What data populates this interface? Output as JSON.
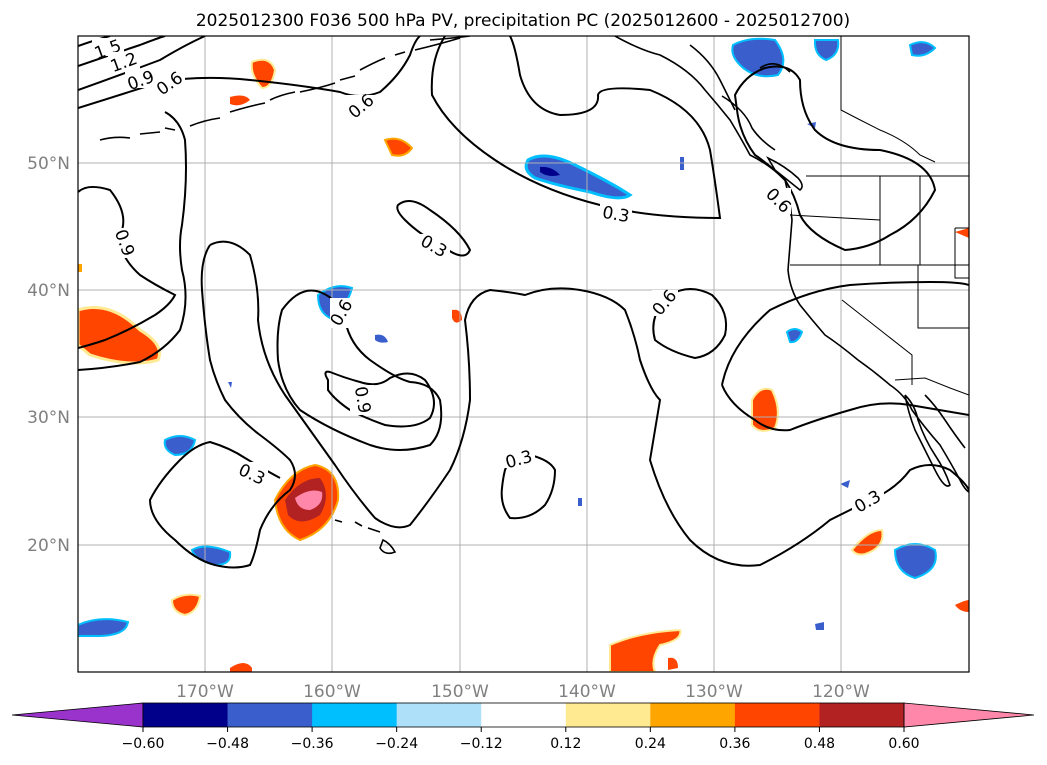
{
  "title": "2025012300 F036 500 hPa PV, precipitation PC (2025012600 - 2025012700)",
  "lat_labels": [
    "50°N",
    "40°N",
    "30°N",
    "20°N"
  ],
  "lon_labels": [
    "170°W",
    "160°W",
    "150°W",
    "140°W",
    "130°W",
    "120°W"
  ],
  "contour_labels": [
    "1.5",
    "1.2",
    "0.9",
    "0.6",
    "0.6",
    "0.9",
    "0.6",
    "0.9",
    "0.6",
    "0.3",
    "0.3",
    "0.6",
    "0.3",
    "0.3",
    "0.3"
  ],
  "colorbar": {
    "colors": [
      "#9933cc",
      "#00008b",
      "#3a5fcd",
      "#00bfff",
      "#afe0fa",
      "#ffffff",
      "#ffea92",
      "#ffa500",
      "#ff4500",
      "#b22222",
      "#ff88aa"
    ],
    "tick_labels": [
      "−0.60",
      "−0.48",
      "−0.36",
      "−0.24",
      "−0.12",
      "0.12",
      "0.24",
      "0.36",
      "0.48",
      "0.60"
    ]
  }
}
